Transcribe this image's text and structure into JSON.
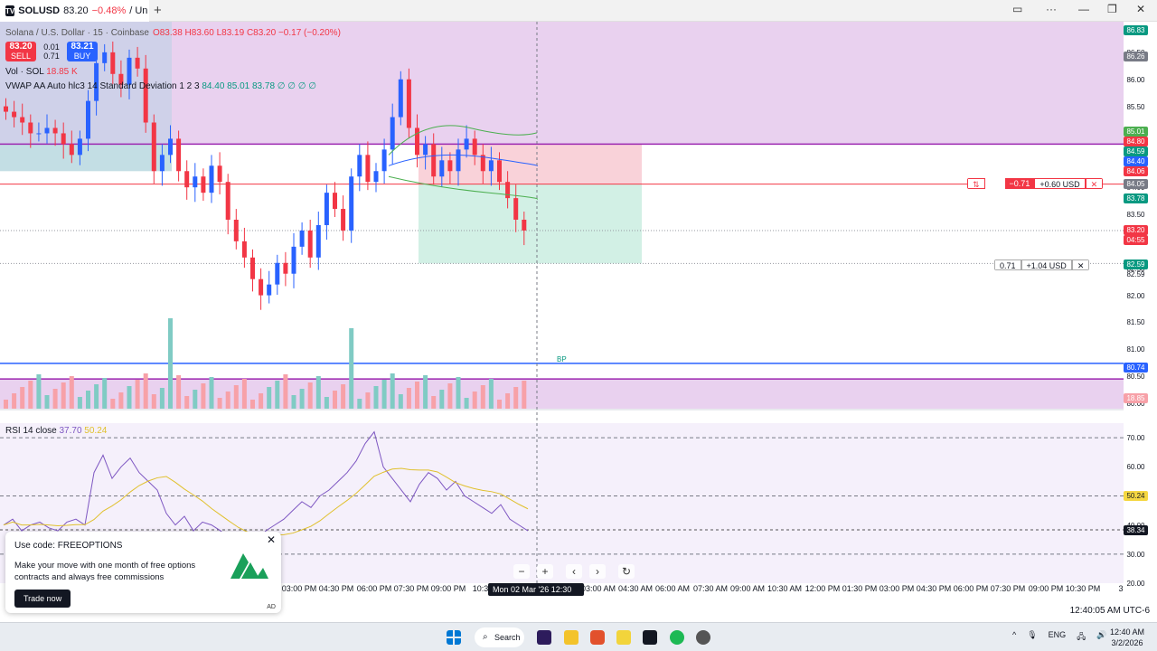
{
  "browser": {
    "tab_symbol": "SOLUSD",
    "tab_price": "83.20",
    "tab_change": "−0.48%",
    "tab_rest": "/ Un"
  },
  "legend": {
    "title": "Solana / U.S. Dollar · 15 · Coinbase",
    "ohlc": "O83.38 H83.60 L83.19 C83.20 −0.17 (−0.20%)",
    "sell_price": "83.20",
    "sell_label": "SELL",
    "buy_price": "83.21",
    "buy_label": "BUY",
    "spread_top": "0.01",
    "spread_val": "0.71",
    "vol_label": "Vol · SOL",
    "vol_value": "18.85 K",
    "vwap_label": "VWAP AA Auto hlc3 14 Standard Deviation 1 2 3",
    "vwap_values": "84.40 85.01 83.78 ∅ ∅ ∅ ∅",
    "rsi_label": "RSI 14 close",
    "rsi_value": "37.70",
    "rsi_ma": "50.24"
  },
  "price_scale": {
    "ticks": [
      "86.50",
      "86.00",
      "85.50",
      "85.00",
      "84.50",
      "84.00",
      "83.50",
      "83.00",
      "82.50",
      "82.00",
      "81.50",
      "81.00",
      "80.50",
      "80.00"
    ],
    "tags": [
      {
        "text": "86.83",
        "color": "#089981"
      },
      {
        "text": "86.26",
        "color": "#787b86"
      },
      {
        "text": "85.01",
        "color": "#4caf50"
      },
      {
        "text": "84.80",
        "color": "#f23645"
      },
      {
        "text": "84.59",
        "color": "#089981"
      },
      {
        "text": "84.40",
        "color": "#2962ff"
      },
      {
        "text": "84.06",
        "color": "#f23645"
      },
      {
        "text": "84.05",
        "color": "#787b86"
      },
      {
        "text": "83.78",
        "color": "#089981"
      },
      {
        "text": "83.20",
        "color": "#f23645"
      },
      {
        "text": "04:55",
        "color": "#f23645"
      },
      {
        "text": "82.59",
        "color": "#089981"
      },
      {
        "text": "82.59",
        "color": "none"
      },
      {
        "text": "80.74",
        "color": "#2962ff"
      },
      {
        "text": "18.85 K",
        "color": "#f7a1a8"
      }
    ],
    "rsi_ticks": [
      "70.00",
      "60.00",
      "40.00",
      "30.00",
      "20.00"
    ],
    "rsi_tags": [
      {
        "text": "50.24",
        "color": "#f5d742"
      },
      {
        "text": "38.34",
        "color": "#131722"
      }
    ]
  },
  "positions": {
    "upper": {
      "qty": "−0.71",
      "pnl": "+0.60 USD"
    },
    "lower": {
      "qty": "0.71",
      "pnl": "+1.04 USD"
    },
    "bp_label": "BP"
  },
  "time_axis": {
    "labels": [
      "03:00 PM",
      "04:30 PM",
      "06:00 PM",
      "07:30 PM",
      "09:00 PM",
      "10:30",
      "03:00 AM",
      "04:30 AM",
      "06:00 AM",
      "07:30 AM",
      "09:00 AM",
      "10:30 AM",
      "12:00 PM",
      "01:30 PM",
      "03:00 PM",
      "04:30 PM",
      "06:00 PM",
      "07:30 PM",
      "09:00 PM",
      "10:30 PM",
      "3"
    ],
    "cursor_label": "Mon 02 Mar '26   12:30 AM",
    "timezone": "12:40:05 AM UTC-6"
  },
  "chart_data": {
    "type": "candlestick",
    "symbol": "Solana / U.S. Dollar",
    "interval": "15",
    "exchange": "Coinbase",
    "ylim": [
      79.9,
      86.9
    ],
    "last_price": 83.2,
    "indicators": {
      "vwap": {
        "upper": 85.01,
        "basis": 84.4,
        "lower": 83.78
      },
      "rsi": {
        "period": 14,
        "value": 37.7,
        "ma": 50.24,
        "ylim": [
          20,
          75
        ],
        "levels": [
          70,
          50,
          30
        ]
      }
    },
    "approx_closes": [
      85.4,
      85.3,
      85.2,
      85.0,
      85.0,
      85.1,
      85.0,
      84.8,
      84.6,
      84.9,
      85.6,
      86.3,
      86.5,
      86.1,
      85.9,
      86.4,
      86.2,
      85.2,
      84.3,
      84.6,
      84.9,
      84.3,
      84.0,
      84.2,
      83.9,
      84.4,
      84.1,
      83.4,
      83.0,
      82.7,
      82.3,
      82.0,
      82.2,
      82.6,
      82.4,
      82.9,
      83.2,
      82.7,
      83.3,
      83.9,
      83.6,
      83.2,
      84.2,
      84.6,
      84.1,
      84.3,
      84.7,
      85.3,
      86.0,
      85.1,
      84.6,
      84.8,
      84.2,
      84.5,
      84.3,
      84.7,
      84.9,
      84.6,
      84.3,
      84.5,
      84.1,
      83.8,
      83.4,
      83.2
    ]
  },
  "ad": {
    "title": "Use code: FREEOPTIONS",
    "body": "Make your move with one month of free options contracts and always free commissions",
    "cta": "Trade now",
    "tag": "AD"
  },
  "taskbar": {
    "search": "Search",
    "lang": "ENG",
    "time": "12:40 AM",
    "date": "3/2/2026"
  }
}
